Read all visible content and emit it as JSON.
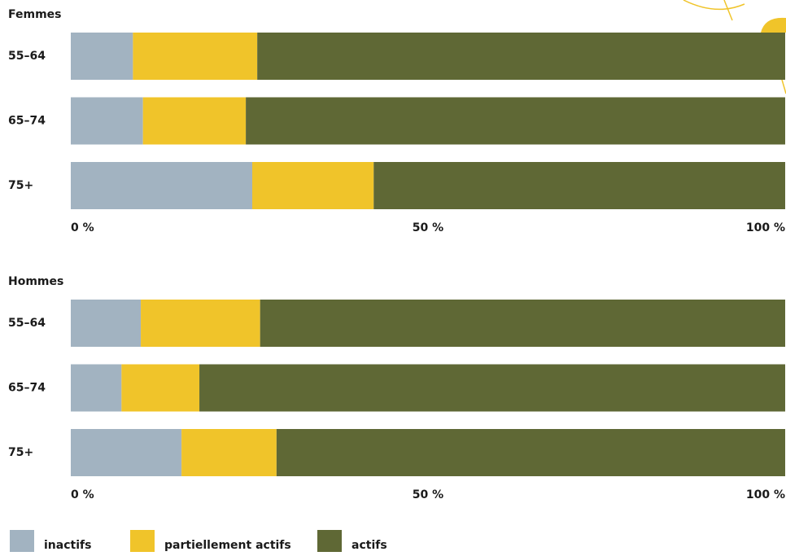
{
  "chart_data": [
    {
      "type": "stacked-bar-horizontal",
      "title": "Femmes",
      "categories": [
        "55–64",
        "65–74",
        "75+"
      ],
      "series": [
        {
          "name": "inactifs",
          "color": "#a2b3c1",
          "values": [
            8.7,
            10.1,
            25.4
          ]
        },
        {
          "name": "partiellement actifs",
          "color": "#f0c42a",
          "values": [
            17.4,
            14.4,
            17.0
          ]
        },
        {
          "name": "actifs",
          "color": "#5f6835",
          "values": [
            73.9,
            75.5,
            57.6
          ]
        }
      ],
      "xlim": [
        0,
        100
      ],
      "xticks": [
        {
          "value": 0,
          "label": "0 %"
        },
        {
          "value": 50,
          "label": "50 %"
        },
        {
          "value": 100,
          "label": "100 %"
        }
      ]
    },
    {
      "type": "stacked-bar-horizontal",
      "title": "Hommes",
      "categories": [
        "55–64",
        "65–74",
        "75+"
      ],
      "series": [
        {
          "color": "#a2b3c1",
          "values": [
            9.8,
            7.1,
            15.5
          ]
        },
        {
          "color": "#f0c42a",
          "values": [
            16.7,
            10.9,
            13.3
          ]
        },
        {
          "color": "#5f6835",
          "values": [
            73.5,
            82.0,
            71.2
          ]
        }
      ],
      "xlim": [
        0,
        100
      ],
      "xticks": [
        {
          "value": 0,
          "label": "0 %"
        },
        {
          "value": 50,
          "label": "50 %"
        },
        {
          "value": 100,
          "label": "100 %"
        }
      ]
    }
  ]
}
